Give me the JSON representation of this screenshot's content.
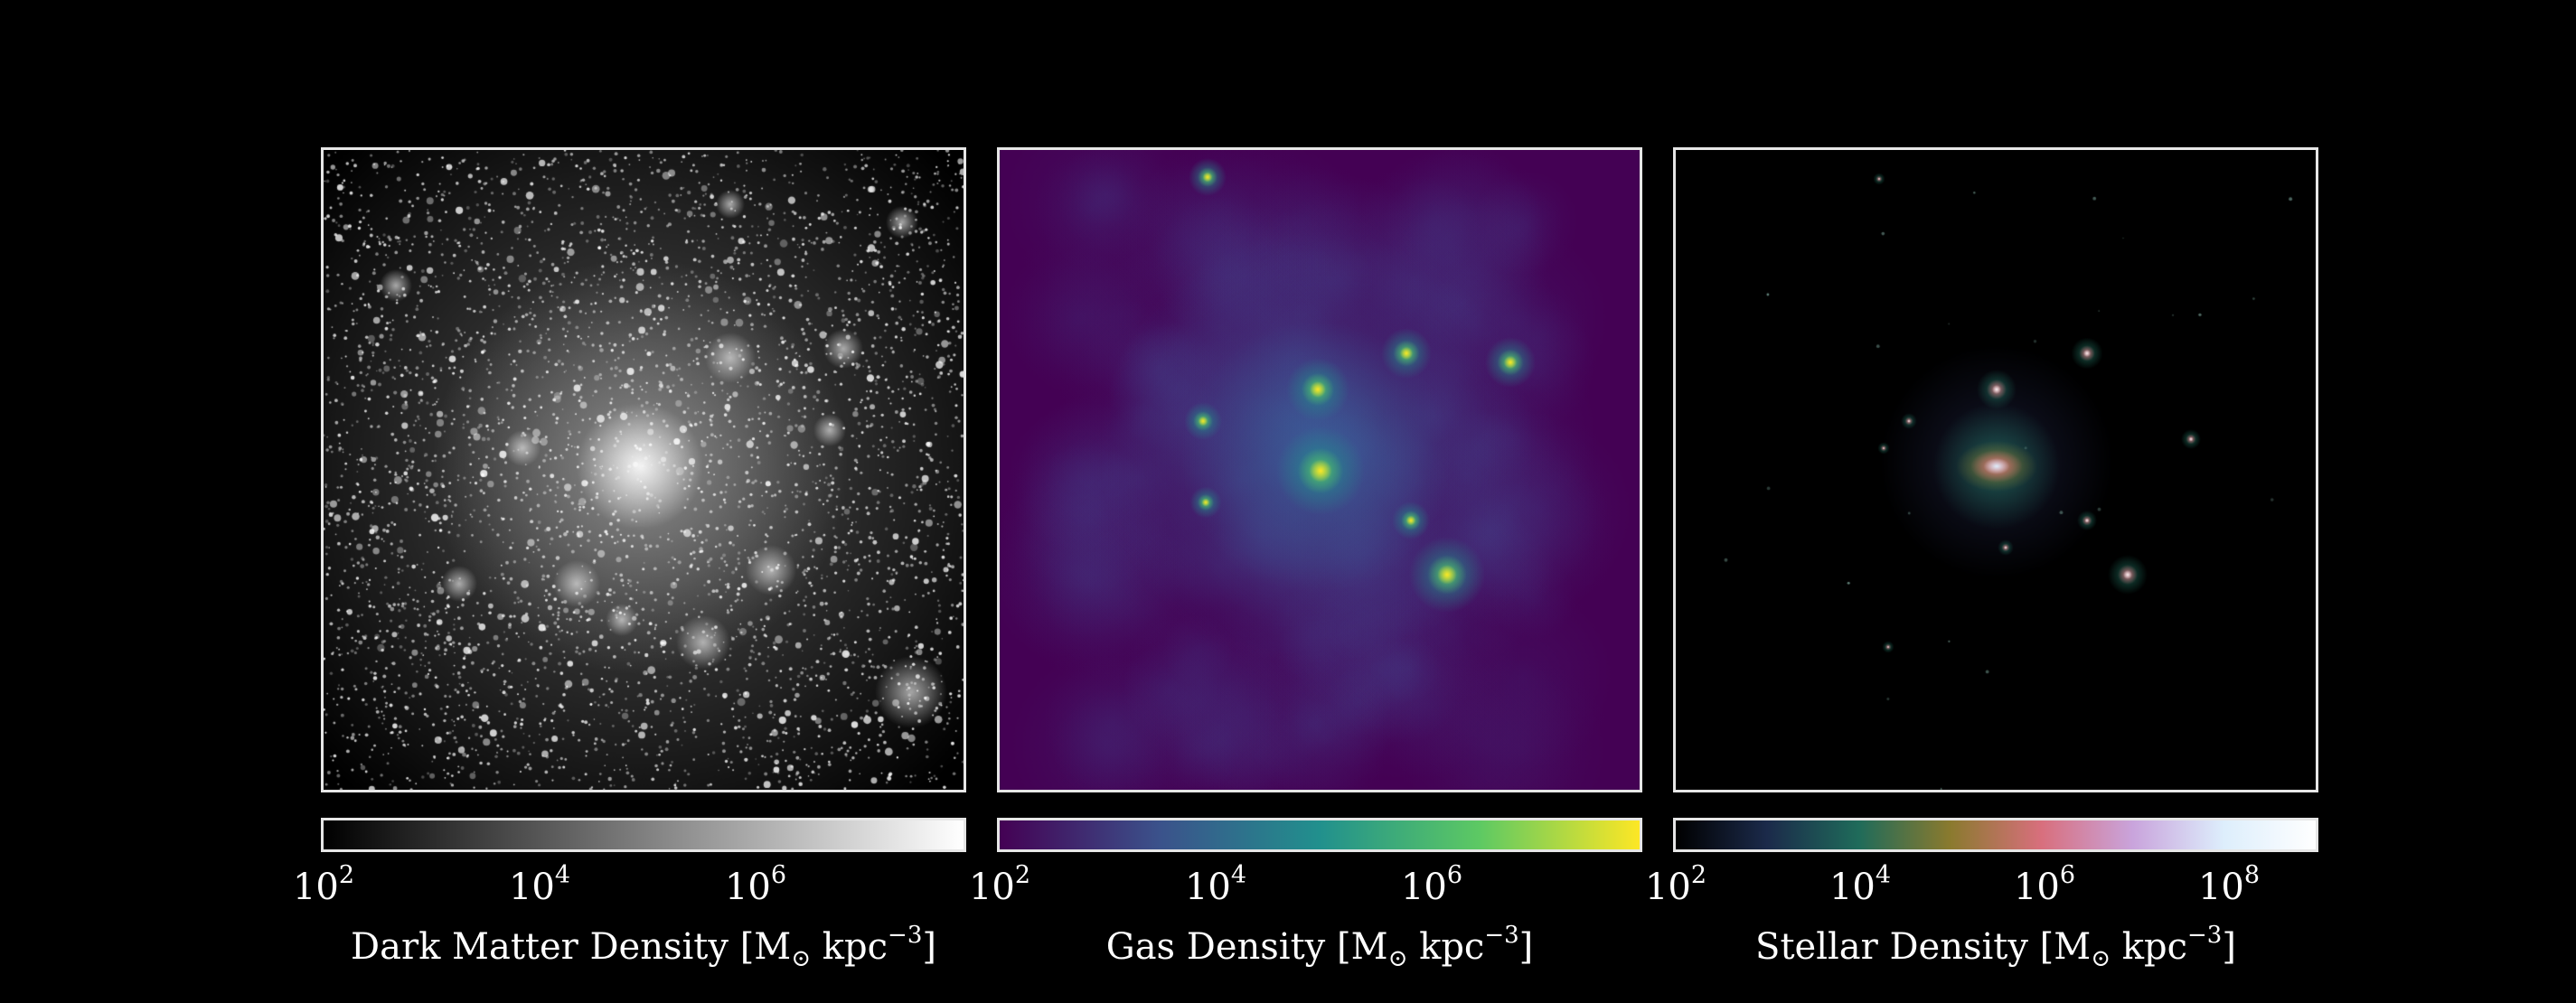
{
  "panels": [
    {
      "name": "dark-matter-density-map",
      "colormap": [
        "#000000",
        "#ffffff"
      ],
      "label": {
        "prefix": "Dark Matter Density [M",
        "sub": "⊙",
        "mid": " kpc",
        "sup": "−3",
        "suffix": "]"
      },
      "ticks": [
        {
          "base": "10",
          "exp": "2"
        },
        {
          "base": "10",
          "exp": "4"
        },
        {
          "base": "10",
          "exp": "6"
        }
      ]
    },
    {
      "name": "gas-density-map",
      "colormap": [
        "#440154",
        "#3b528b",
        "#21908d",
        "#5dc963",
        "#fde725"
      ],
      "label": {
        "prefix": "Gas Density [M",
        "sub": "⊙",
        "mid": " kpc",
        "sup": "−3",
        "suffix": "]"
      },
      "ticks": [
        {
          "base": "10",
          "exp": "2"
        },
        {
          "base": "10",
          "exp": "4"
        },
        {
          "base": "10",
          "exp": "6"
        }
      ]
    },
    {
      "name": "stellar-density-map",
      "colormap": [
        "#000000",
        "#1b2a4a",
        "#1f6b5a",
        "#8a7a2e",
        "#d86f7d",
        "#c9a4dc",
        "#ddeefc",
        "#ffffff"
      ],
      "label": {
        "prefix": "Stellar Density [M",
        "sub": "⊙",
        "mid": " kpc",
        "sup": "−3",
        "suffix": "]"
      },
      "ticks": [
        {
          "base": "10",
          "exp": "2"
        },
        {
          "base": "10",
          "exp": "4"
        },
        {
          "base": "10",
          "exp": "6"
        },
        {
          "base": "10",
          "exp": "8"
        }
      ]
    }
  ]
}
